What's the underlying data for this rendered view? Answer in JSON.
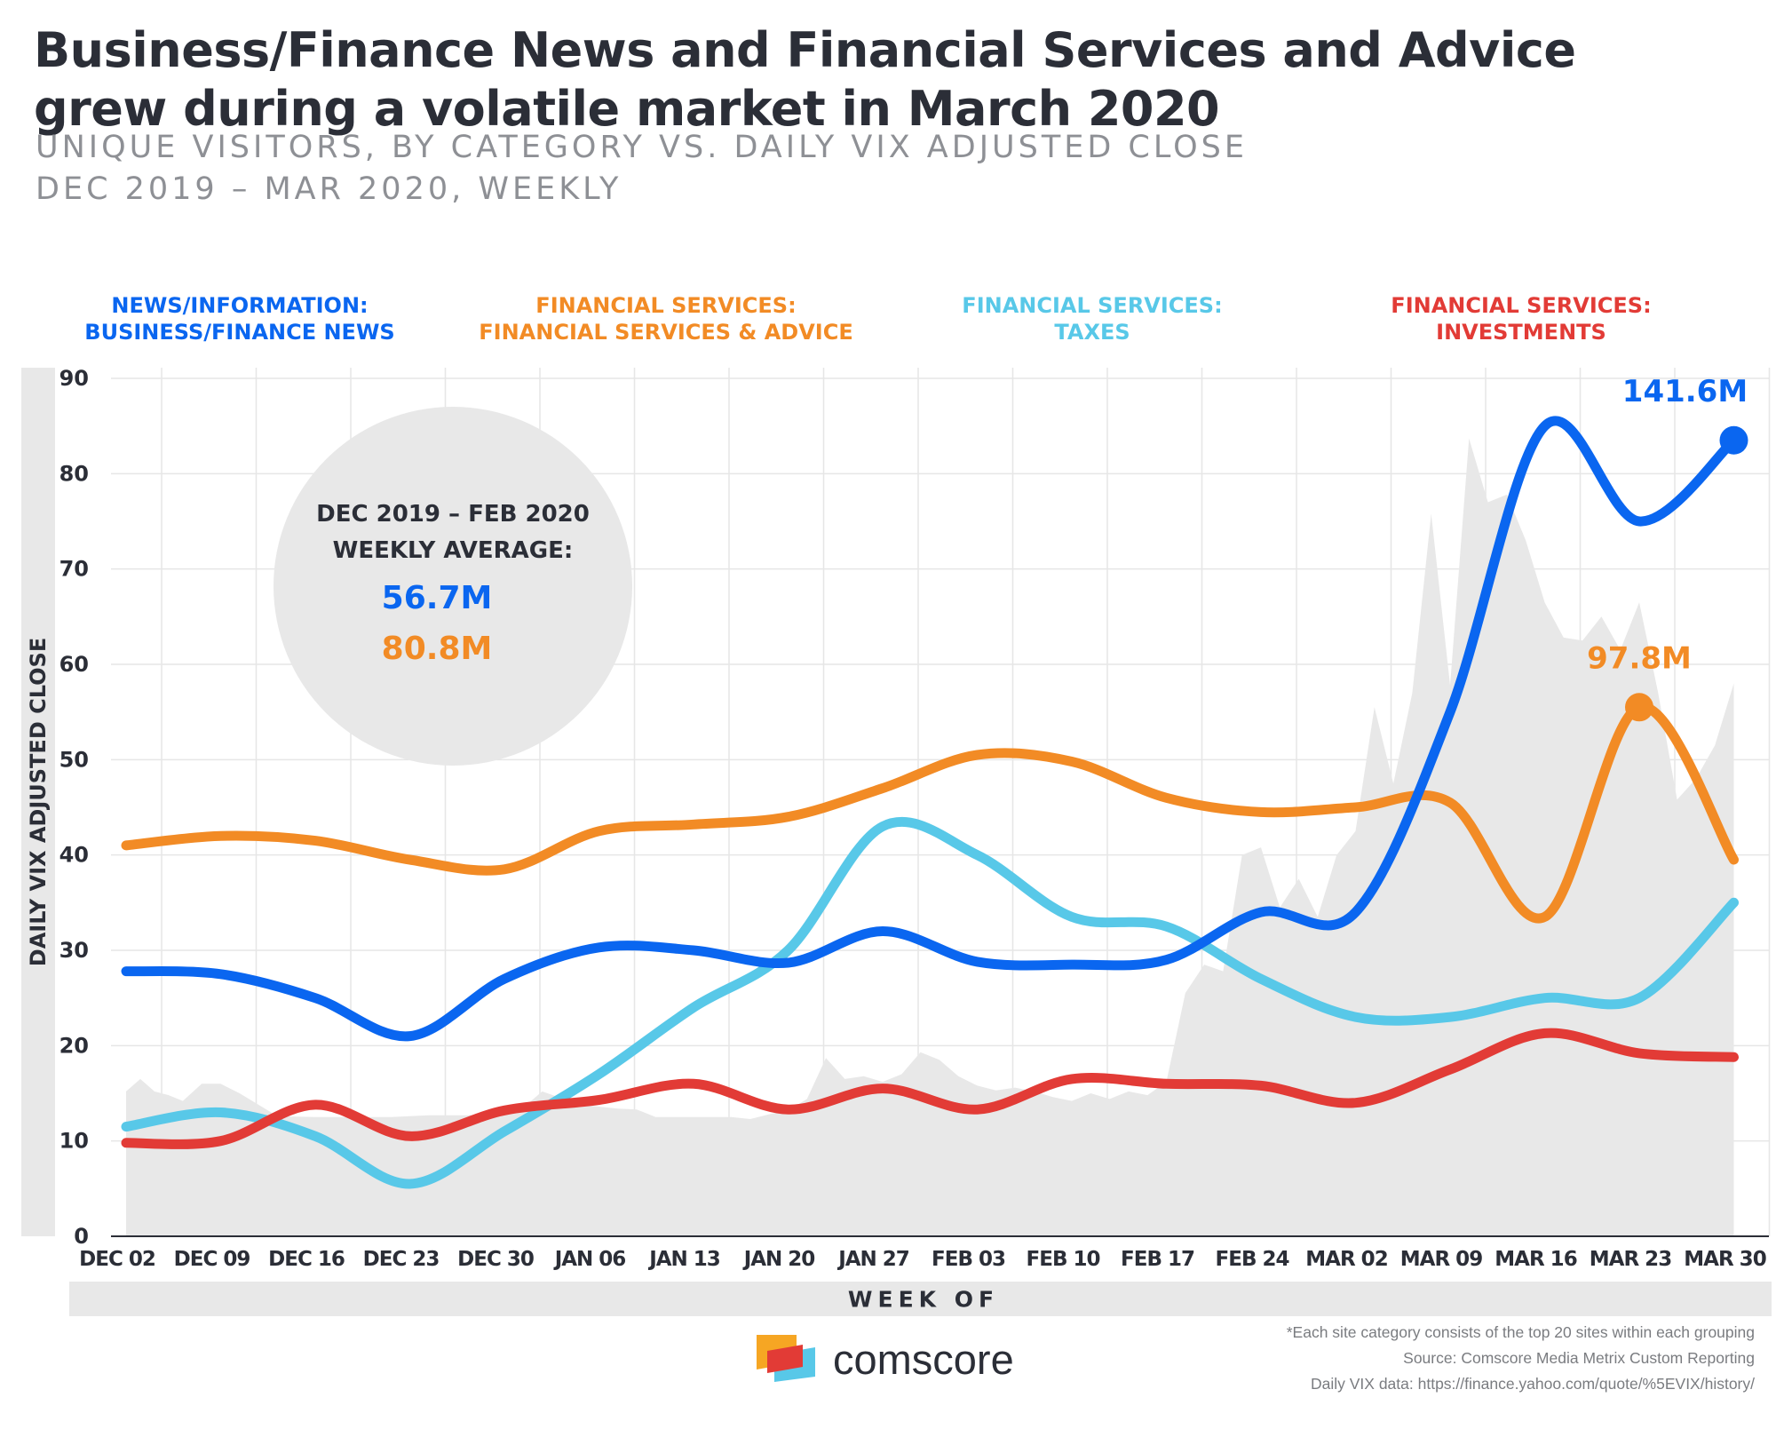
{
  "title": "Business/Finance News and Financial Services and Advice grew during a volatile market in March 2020",
  "subtitle_line1": "UNIQUE VISITORS, BY CATEGORY VS. DAILY VIX ADJUSTED CLOSE",
  "subtitle_line2": "DEC 2019 – MAR 2020, WEEKLY",
  "brand": {
    "name": "comscore"
  },
  "footnotes": [
    "*Each site category consists of the top 20 sites within each grouping",
    "Source: Comscore Media Metrix Custom Reporting",
    "Daily VIX data: https://finance.yahoo.com/quote/%5EVIX/history/"
  ],
  "callout": {
    "heading_line1": "DEC 2019 – FEB 2020",
    "heading_line2": "WEEKLY AVERAGE:",
    "values": [
      {
        "text": "56.7M",
        "color": "#0a66f0"
      },
      {
        "text": "80.8M",
        "color": "#f28b25"
      }
    ]
  },
  "chart_data": {
    "type": "line",
    "ylabel": "DAILY VIX ADJUSTED CLOSE",
    "xlabel": "WEEK OF",
    "ylim": [
      0,
      90
    ],
    "yticks": [
      0,
      10,
      20,
      30,
      40,
      50,
      60,
      70,
      80,
      90
    ],
    "grid": true,
    "legend_position": "top",
    "categories": [
      "DEC 02",
      "DEC 09",
      "DEC 16",
      "DEC 23",
      "DEC 30",
      "JAN 06",
      "JAN 13",
      "JAN 20",
      "JAN 27",
      "FEB 03",
      "FEB 10",
      "FEB 17",
      "FEB 24",
      "MAR 02",
      "MAR 09",
      "MAR 16",
      "MAR 23",
      "MAR 30"
    ],
    "series": [
      {
        "name": "NEWS/INFORMATION: BUSINESS/FINANCE NEWS",
        "legend_lines": [
          "NEWS/INFORMATION:",
          "BUSINESS/FINANCE NEWS"
        ],
        "color": "#0a66f0",
        "values": [
          27.8,
          27.5,
          25,
          21,
          27,
          30.3,
          30,
          28.7,
          32,
          28.8,
          28.5,
          29,
          34,
          34,
          55,
          85,
          75,
          83.5
        ],
        "end_label": "141.6M",
        "end_label_index": 17,
        "end_marker": true
      },
      {
        "name": "FINANCIAL SERVICES: FINANCIAL SERVICES & ADVICE",
        "legend_lines": [
          "FINANCIAL SERVICES:",
          "FINANCIAL SERVICES & ADVICE"
        ],
        "color": "#f28b25",
        "values": [
          41,
          42,
          41.5,
          39.5,
          38.5,
          42.5,
          43.2,
          44,
          47,
          50.5,
          49.8,
          46,
          44.5,
          45,
          45.5,
          33.5,
          55.5,
          39.5
        ],
        "end_label": "97.8M",
        "end_label_index": 16,
        "end_marker": true
      },
      {
        "name": "FINANCIAL SERVICES: TAXES",
        "legend_lines": [
          "FINANCIAL SERVICES:",
          "TAXES"
        ],
        "color": "#58c8e8",
        "values": [
          11.5,
          13,
          10.5,
          5.5,
          11,
          17,
          24,
          30,
          43,
          40,
          33.5,
          32.5,
          27,
          23,
          23,
          25,
          25,
          35
        ],
        "end_marker": false
      },
      {
        "name": "FINANCIAL SERVICES: INVESTMENTS",
        "legend_lines": [
          "FINANCIAL SERVICES:",
          "INVESTMENTS"
        ],
        "color": "#e23b36",
        "values": [
          9.8,
          10,
          13.8,
          10.5,
          13.2,
          14.3,
          16,
          13.3,
          15.5,
          13.3,
          16.5,
          16,
          15.8,
          14,
          17.5,
          21.3,
          19.2,
          18.8
        ],
        "end_marker": false
      }
    ],
    "vix_area": {
      "color": "#e8e8e8",
      "points": [
        [
          0,
          15.2
        ],
        [
          0.15,
          16.5
        ],
        [
          0.3,
          15.2
        ],
        [
          0.45,
          14.8
        ],
        [
          0.6,
          14.2
        ],
        [
          0.8,
          16
        ],
        [
          1.0,
          16
        ],
        [
          1.2,
          15
        ],
        [
          1.4,
          13.8
        ],
        [
          1.6,
          12.6
        ],
        [
          2.0,
          12.5
        ],
        [
          2.4,
          12.5
        ],
        [
          2.8,
          12.5
        ],
        [
          3.2,
          12.7
        ],
        [
          3.6,
          12.7
        ],
        [
          4.0,
          12.9
        ],
        [
          4.2,
          13.5
        ],
        [
          4.4,
          15.2
        ],
        [
          4.6,
          14.5
        ],
        [
          4.8,
          13.8
        ],
        [
          5.0,
          13.6
        ],
        [
          5.2,
          13.4
        ],
        [
          5.4,
          13.3
        ],
        [
          5.6,
          12.5
        ],
        [
          5.8,
          12.5
        ],
        [
          6.0,
          12.5
        ],
        [
          6.2,
          12.5
        ],
        [
          6.4,
          12.5
        ],
        [
          6.6,
          12.3
        ],
        [
          6.8,
          12.8
        ],
        [
          7.0,
          13.2
        ],
        [
          7.2,
          14.4
        ],
        [
          7.4,
          18.7
        ],
        [
          7.6,
          16.5
        ],
        [
          7.8,
          16.8
        ],
        [
          8.0,
          16.2
        ],
        [
          8.2,
          17
        ],
        [
          8.4,
          19.3
        ],
        [
          8.6,
          18.5
        ],
        [
          8.8,
          16.8
        ],
        [
          9.0,
          15.8
        ],
        [
          9.2,
          15.3
        ],
        [
          9.4,
          15.6
        ],
        [
          9.6,
          15.2
        ],
        [
          9.8,
          14.6
        ],
        [
          10.0,
          14.2
        ],
        [
          10.2,
          15
        ],
        [
          10.4,
          14.4
        ],
        [
          10.6,
          15.2
        ],
        [
          10.8,
          14.8
        ],
        [
          11.0,
          16.2
        ],
        [
          11.2,
          25.5
        ],
        [
          11.4,
          28.5
        ],
        [
          11.6,
          27.8
        ],
        [
          11.8,
          40
        ],
        [
          12.0,
          40.8
        ],
        [
          12.2,
          34.5
        ],
        [
          12.4,
          37.5
        ],
        [
          12.6,
          33.5
        ],
        [
          12.8,
          40
        ],
        [
          13.0,
          42.5
        ],
        [
          13.2,
          55.5
        ],
        [
          13.4,
          47.5
        ],
        [
          13.6,
          57
        ],
        [
          13.8,
          75.8
        ],
        [
          14.0,
          57.8
        ],
        [
          14.2,
          83.7
        ],
        [
          14.4,
          77
        ],
        [
          14.6,
          77.8
        ],
        [
          14.8,
          73
        ],
        [
          15.0,
          66.5
        ],
        [
          15.2,
          62.8
        ],
        [
          15.4,
          62.5
        ],
        [
          15.6,
          65
        ],
        [
          15.8,
          61.5
        ],
        [
          16.0,
          66.5
        ],
        [
          16.2,
          57
        ],
        [
          16.4,
          45.8
        ],
        [
          16.6,
          48
        ],
        [
          16.8,
          51.5
        ],
        [
          17.0,
          58
        ]
      ]
    }
  }
}
